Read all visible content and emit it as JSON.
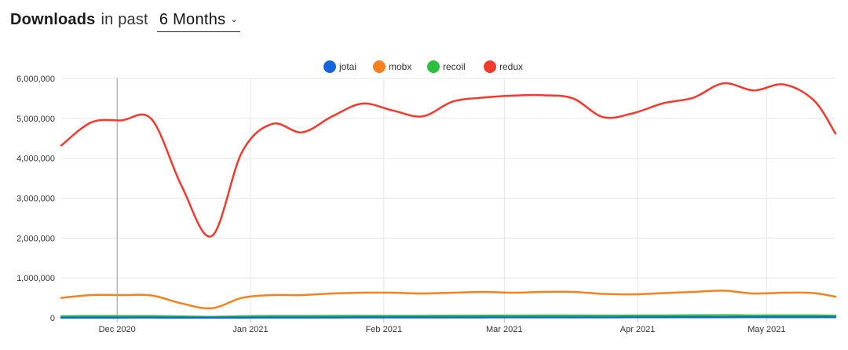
{
  "header": {
    "title": "Downloads",
    "subtitle": "in past",
    "range_value": "6 Months"
  },
  "chart_data": {
    "type": "line",
    "title": "Downloads in past 6 Months",
    "xlabel": "",
    "ylabel": "",
    "ylim": [
      0,
      6000000
    ],
    "y_ticks": [
      {
        "value": 0,
        "label": "0"
      },
      {
        "value": 1000000,
        "label": "1,000,000"
      },
      {
        "value": 2000000,
        "label": "2,000,000"
      },
      {
        "value": 3000000,
        "label": "3,000,000"
      },
      {
        "value": 4000000,
        "label": "4,000,000"
      },
      {
        "value": 5000000,
        "label": "5,000,000"
      },
      {
        "value": 6000000,
        "label": "6,000,000"
      }
    ],
    "x_start": "2020-11-18",
    "x_end": "2021-05-17",
    "x_ticks": [
      {
        "date": "2020-12-01",
        "label": "Dec 2020"
      },
      {
        "date": "2021-01-01",
        "label": "Jan 2021"
      },
      {
        "date": "2021-02-01",
        "label": "Feb 2021"
      },
      {
        "date": "2021-03-01",
        "label": "Mar 2021"
      },
      {
        "date": "2021-04-01",
        "label": "Apr 2021"
      },
      {
        "date": "2021-05-01",
        "label": "May 2021"
      }
    ],
    "highlight_date": "2020-12-01",
    "legend": "top-center",
    "grid": true,
    "x": [
      "2020-11-18",
      "2020-11-25",
      "2020-12-02",
      "2020-12-09",
      "2020-12-16",
      "2020-12-23",
      "2020-12-30",
      "2021-01-06",
      "2021-01-13",
      "2021-01-20",
      "2021-01-27",
      "2021-02-03",
      "2021-02-10",
      "2021-02-17",
      "2021-02-24",
      "2021-03-03",
      "2021-03-10",
      "2021-03-17",
      "2021-03-24",
      "2021-03-31",
      "2021-04-07",
      "2021-04-14",
      "2021-04-21",
      "2021-04-28",
      "2021-05-05",
      "2021-05-12",
      "2021-05-17"
    ],
    "series": [
      {
        "name": "jotai",
        "color": "#1565d8",
        "values": [
          5000,
          5000,
          6000,
          7000,
          5000,
          5000,
          6000,
          7000,
          8000,
          8000,
          9000,
          10000,
          10000,
          10000,
          11000,
          12000,
          12000,
          13000,
          13000,
          14000,
          15000,
          15000,
          16000,
          17000,
          17000,
          18000,
          18000
        ]
      },
      {
        "name": "mobx",
        "color": "#f5821f",
        "values": [
          500000,
          570000,
          570000,
          560000,
          360000,
          240000,
          500000,
          570000,
          570000,
          610000,
          630000,
          630000,
          610000,
          630000,
          650000,
          630000,
          650000,
          650000,
          600000,
          590000,
          620000,
          650000,
          680000,
          610000,
          630000,
          620000,
          530000
        ]
      },
      {
        "name": "recoil",
        "color": "#2bbf3d",
        "values": [
          40000,
          45000,
          45000,
          44000,
          35000,
          25000,
          40000,
          46000,
          46000,
          48000,
          50000,
          50000,
          50000,
          52000,
          55000,
          56000,
          58000,
          58000,
          57000,
          58000,
          60000,
          63000,
          66000,
          60000,
          62000,
          62000,
          55000
        ]
      },
      {
        "name": "redux",
        "color": "#f23a2f",
        "values": [
          4320000,
          4900000,
          4950000,
          4980000,
          3300000,
          2050000,
          4150000,
          4860000,
          4650000,
          5050000,
          5370000,
          5200000,
          5050000,
          5420000,
          5520000,
          5570000,
          5580000,
          5500000,
          5030000,
          5130000,
          5380000,
          5520000,
          5880000,
          5700000,
          5850000,
          5450000,
          4620000
        ]
      }
    ]
  }
}
